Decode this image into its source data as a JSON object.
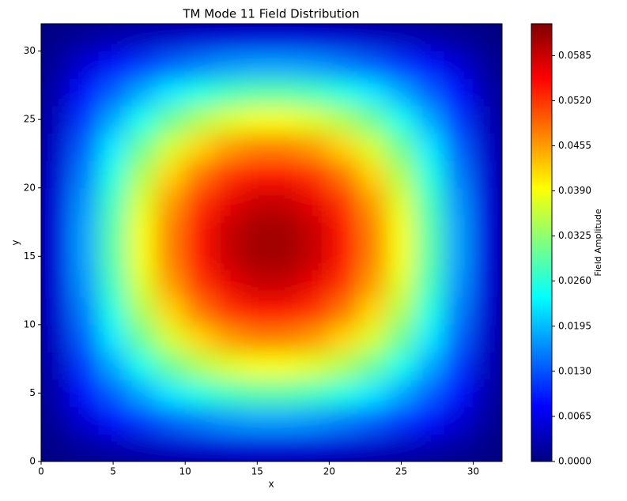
{
  "chart_data": {
    "type": "heatmap",
    "title": "TM Mode 11 Field Distribution",
    "x_label": "x",
    "y_label": "y",
    "colorbar_label": "Field Amplitude",
    "colormap": "jet",
    "xlim": [
      0,
      32
    ],
    "ylim": [
      0,
      32
    ],
    "xticks": [
      0,
      5,
      10,
      15,
      20,
      25,
      30
    ],
    "yticks": [
      0,
      5,
      10,
      15,
      20,
      25,
      30
    ],
    "x": [
      1,
      3,
      5,
      7,
      9,
      11,
      13,
      15,
      17,
      19,
      21,
      23,
      25,
      27,
      29,
      31
    ],
    "y": [
      1,
      3,
      5,
      7,
      9,
      11,
      13,
      15,
      17,
      19,
      21,
      23,
      25,
      27,
      29,
      31
    ],
    "z": [
      [
        0.0006,
        0.0018,
        0.0028,
        0.0038,
        0.0047,
        0.0053,
        0.0058,
        0.006,
        0.006,
        0.0058,
        0.0053,
        0.0047,
        0.0038,
        0.0028,
        0.0018,
        0.0006
      ],
      [
        0.0018,
        0.0052,
        0.0084,
        0.0113,
        0.0138,
        0.0157,
        0.0171,
        0.0178,
        0.0178,
        0.0171,
        0.0157,
        0.0138,
        0.0113,
        0.0084,
        0.0052,
        0.0018
      ],
      [
        0.0028,
        0.0084,
        0.0137,
        0.0184,
        0.0224,
        0.0256,
        0.0277,
        0.0289,
        0.0289,
        0.0277,
        0.0256,
        0.0224,
        0.0184,
        0.0137,
        0.0084,
        0.0028
      ],
      [
        0.0038,
        0.0113,
        0.0184,
        0.0248,
        0.0302,
        0.0344,
        0.0373,
        0.0388,
        0.0388,
        0.0373,
        0.0344,
        0.0302,
        0.0248,
        0.0184,
        0.0113,
        0.0038
      ],
      [
        0.0047,
        0.0138,
        0.0224,
        0.0302,
        0.0368,
        0.0419,
        0.0455,
        0.0473,
        0.0473,
        0.0455,
        0.0419,
        0.0368,
        0.0302,
        0.0224,
        0.0138,
        0.0047
      ],
      [
        0.0053,
        0.0157,
        0.0256,
        0.0344,
        0.0419,
        0.0478,
        0.0519,
        0.054,
        0.054,
        0.0519,
        0.0478,
        0.0419,
        0.0344,
        0.0256,
        0.0157,
        0.0053
      ],
      [
        0.0058,
        0.0171,
        0.0277,
        0.0373,
        0.0455,
        0.0519,
        0.0563,
        0.0586,
        0.0586,
        0.0563,
        0.0519,
        0.0455,
        0.0373,
        0.0277,
        0.0171,
        0.0058
      ],
      [
        0.006,
        0.0178,
        0.0289,
        0.0388,
        0.0473,
        0.054,
        0.0586,
        0.0609,
        0.0609,
        0.0586,
        0.054,
        0.0473,
        0.0388,
        0.0289,
        0.0178,
        0.006
      ],
      [
        0.006,
        0.0178,
        0.0289,
        0.0388,
        0.0473,
        0.054,
        0.0586,
        0.0609,
        0.0609,
        0.0586,
        0.054,
        0.0473,
        0.0388,
        0.0289,
        0.0178,
        0.006
      ],
      [
        0.0058,
        0.0171,
        0.0277,
        0.0373,
        0.0455,
        0.0519,
        0.0563,
        0.0586,
        0.0586,
        0.0563,
        0.0519,
        0.0455,
        0.0373,
        0.0277,
        0.0171,
        0.0058
      ],
      [
        0.0053,
        0.0157,
        0.0256,
        0.0344,
        0.0419,
        0.0478,
        0.0519,
        0.054,
        0.054,
        0.0519,
        0.0478,
        0.0419,
        0.0344,
        0.0256,
        0.0157,
        0.0053
      ],
      [
        0.0047,
        0.0138,
        0.0224,
        0.0302,
        0.0368,
        0.0419,
        0.0455,
        0.0473,
        0.0473,
        0.0455,
        0.0419,
        0.0368,
        0.0302,
        0.0224,
        0.0138,
        0.0047
      ],
      [
        0.0038,
        0.0113,
        0.0184,
        0.0248,
        0.0302,
        0.0344,
        0.0373,
        0.0388,
        0.0388,
        0.0373,
        0.0344,
        0.0302,
        0.0248,
        0.0184,
        0.0113,
        0.0038
      ],
      [
        0.0028,
        0.0084,
        0.0137,
        0.0184,
        0.0224,
        0.0256,
        0.0277,
        0.0289,
        0.0289,
        0.0277,
        0.0256,
        0.0224,
        0.0184,
        0.0137,
        0.0084,
        0.0028
      ],
      [
        0.0018,
        0.0052,
        0.0084,
        0.0113,
        0.0138,
        0.0157,
        0.0171,
        0.0178,
        0.0178,
        0.0171,
        0.0157,
        0.0138,
        0.0113,
        0.0084,
        0.0052,
        0.0018
      ],
      [
        0.0006,
        0.0018,
        0.0028,
        0.0038,
        0.0047,
        0.0053,
        0.0058,
        0.006,
        0.006,
        0.0058,
        0.0053,
        0.0047,
        0.0038,
        0.0028,
        0.0018,
        0.0006
      ]
    ],
    "clim": [
      0,
      0.0631
    ],
    "cticks": [
      {
        "value": 0,
        "label": "0.0000"
      },
      {
        "value": 0.0065,
        "label": "0.0065"
      },
      {
        "value": 0.013,
        "label": "0.0130"
      },
      {
        "value": 0.0195,
        "label": "0.0195"
      },
      {
        "value": 0.026,
        "label": "0.0260"
      },
      {
        "value": 0.0325,
        "label": "0.0325"
      },
      {
        "value": 0.039,
        "label": "0.0390"
      },
      {
        "value": 0.0455,
        "label": "0.0455"
      },
      {
        "value": 0.052,
        "label": "0.0520"
      },
      {
        "value": 0.0585,
        "label": "0.0585"
      }
    ]
  }
}
